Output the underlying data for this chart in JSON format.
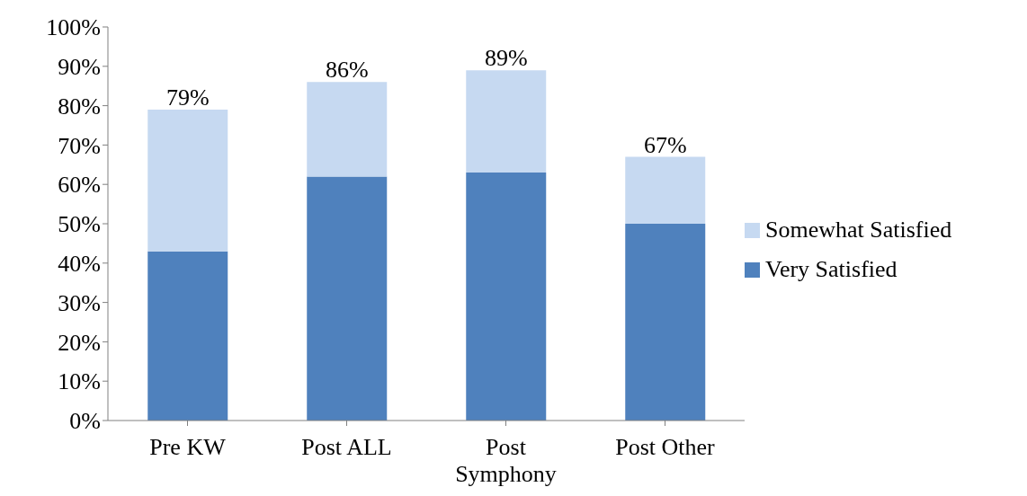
{
  "chart_data": {
    "type": "bar",
    "stacked": true,
    "categories": [
      "Pre KW",
      "Post ALL",
      "Post Symphony",
      "Post Other"
    ],
    "series": [
      {
        "name": "Very Satisfied",
        "color": "#4f81bd",
        "values": [
          43,
          62,
          63,
          50
        ]
      },
      {
        "name": "Somewhat Satisfied",
        "color": "#c6d9f1",
        "values": [
          36,
          24,
          26,
          17
        ]
      }
    ],
    "totals": [
      "79%",
      "86%",
      "89%",
      "67%"
    ],
    "ylim": [
      0,
      100
    ],
    "yticks": [
      {
        "value": 0,
        "label": "0%"
      },
      {
        "value": 10,
        "label": "10%"
      },
      {
        "value": 20,
        "label": "20%"
      },
      {
        "value": 30,
        "label": "30%"
      },
      {
        "value": 40,
        "label": "40%"
      },
      {
        "value": 50,
        "label": "50%"
      },
      {
        "value": 60,
        "label": "60%"
      },
      {
        "value": 70,
        "label": "70%"
      },
      {
        "value": 80,
        "label": "80%"
      },
      {
        "value": 90,
        "label": "90%"
      },
      {
        "value": 100,
        "label": "100%"
      }
    ],
    "grid": false,
    "legend": "right"
  }
}
